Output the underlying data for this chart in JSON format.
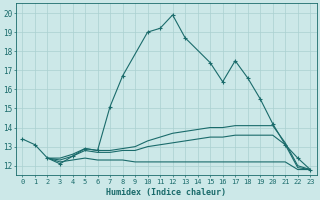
{
  "xlabel": "Humidex (Indice chaleur)",
  "xlim": [
    -0.5,
    23.5
  ],
  "ylim": [
    11.5,
    20.5
  ],
  "yticks": [
    12,
    13,
    14,
    15,
    16,
    17,
    18,
    19,
    20
  ],
  "xticks": [
    0,
    1,
    2,
    3,
    4,
    5,
    6,
    7,
    8,
    9,
    10,
    11,
    12,
    13,
    14,
    15,
    16,
    17,
    18,
    19,
    20,
    21,
    22,
    23
  ],
  "bg_color": "#cce8e8",
  "grid_color": "#aad0d0",
  "line_color": "#1a6b6b",
  "lines": [
    {
      "x": [
        0,
        1,
        2,
        3,
        4,
        5,
        6,
        7,
        8,
        10,
        11,
        12,
        13,
        15,
        16,
        17,
        18,
        19,
        20,
        21,
        22,
        23
      ],
      "y": [
        13.4,
        13.1,
        12.4,
        12.1,
        12.5,
        12.9,
        12.8,
        15.1,
        16.7,
        19.0,
        19.2,
        19.9,
        18.7,
        17.4,
        16.4,
        17.5,
        16.6,
        15.5,
        14.2,
        13.1,
        12.4,
        11.8
      ],
      "marker": true
    },
    {
      "x": [
        2,
        3,
        4,
        5,
        6,
        7,
        8,
        9,
        10,
        11,
        12,
        13,
        14,
        15,
        16,
        17,
        18,
        19,
        20,
        21,
        22,
        23
      ],
      "y": [
        12.4,
        12.2,
        12.3,
        12.4,
        12.3,
        12.3,
        12.3,
        12.2,
        12.2,
        12.2,
        12.2,
        12.2,
        12.2,
        12.2,
        12.2,
        12.2,
        12.2,
        12.2,
        12.2,
        12.2,
        11.8,
        11.8
      ],
      "marker": false
    },
    {
      "x": [
        2,
        3,
        4,
        5,
        6,
        7,
        8,
        9,
        10,
        11,
        12,
        13,
        14,
        15,
        16,
        17,
        18,
        19,
        20,
        21,
        22,
        23
      ],
      "y": [
        12.4,
        12.3,
        12.5,
        12.8,
        12.7,
        12.7,
        12.8,
        12.8,
        13.0,
        13.1,
        13.2,
        13.3,
        13.4,
        13.5,
        13.5,
        13.6,
        13.6,
        13.6,
        13.6,
        13.1,
        11.9,
        11.8
      ],
      "marker": false
    },
    {
      "x": [
        2,
        3,
        4,
        5,
        6,
        7,
        8,
        9,
        10,
        11,
        12,
        13,
        14,
        15,
        16,
        17,
        18,
        19,
        20,
        21,
        22,
        23
      ],
      "y": [
        12.4,
        12.4,
        12.6,
        12.9,
        12.8,
        12.8,
        12.9,
        13.0,
        13.3,
        13.5,
        13.7,
        13.8,
        13.9,
        14.0,
        14.0,
        14.1,
        14.1,
        14.1,
        14.1,
        13.2,
        12.0,
        11.8
      ],
      "marker": false
    }
  ]
}
